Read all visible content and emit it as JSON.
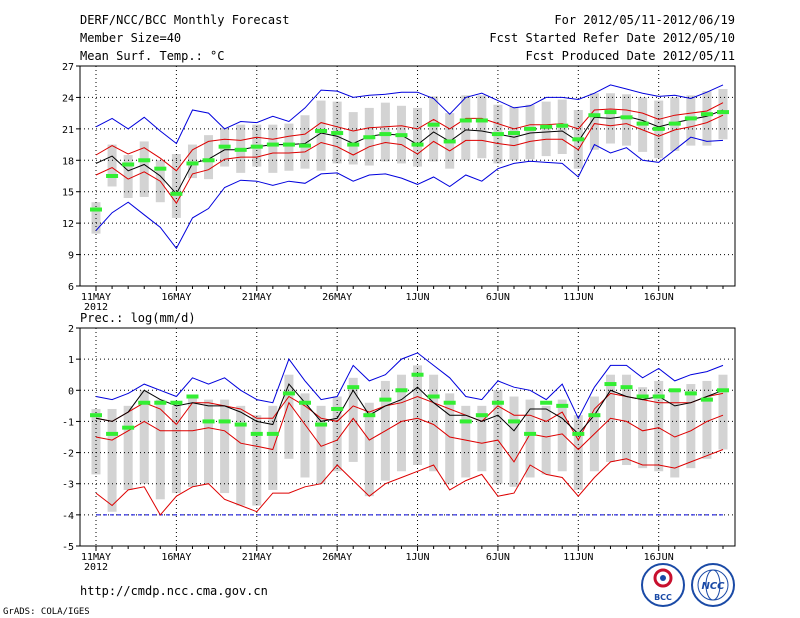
{
  "header": {
    "title": "DERF/NCC/BCC Monthly Forecast",
    "member_size": "Member Size=40",
    "variable": "Mean Surf. Temp.: °C",
    "period": "For 2012/05/11-2012/06/19",
    "started": "Fcst Started Refer Date 2012/05/10",
    "produced": "Fcst Produced Date 2012/05/11"
  },
  "footer": {
    "url": "http://cmdp.ncc.cma.gov.cn",
    "grads": "GrADS: COLA/IGES",
    "logo1_text": "BCC",
    "logo2_text": "NCC"
  },
  "colors": {
    "envelope": "#0000dd",
    "quartile": "#dd0000",
    "median": "#000000",
    "observed": "#33ee33",
    "spread": "#d3d3d3"
  },
  "chart_data": [
    {
      "type": "line",
      "title": "Mean Surf. Temp.: °C",
      "ylim": [
        6,
        27
      ],
      "yticks": [
        6,
        9,
        12,
        15,
        18,
        21,
        24,
        27
      ],
      "x_tick_labels": [
        "11MAY",
        "16MAY",
        "21MAY",
        "26MAY",
        "1JUN",
        "6JUN",
        "11JUN",
        "16JUN"
      ],
      "x_tick_days": [
        1,
        6,
        11,
        16,
        21,
        26,
        31,
        36
      ],
      "year_label": "2012",
      "days": 40,
      "series": [
        {
          "name": "max",
          "color": "blue",
          "values": [
            21.2,
            22.0,
            21.0,
            22.1,
            20.8,
            19.6,
            22.8,
            22.5,
            21.0,
            21.7,
            21.6,
            22.2,
            21.7,
            23.0,
            24.7,
            24.6,
            24.0,
            24.2,
            24.3,
            24.5,
            24.5,
            23.9,
            22.4,
            24.0,
            24.4,
            23.7,
            23.0,
            23.2,
            24.0,
            24.0,
            23.8,
            24.4,
            25.2,
            24.8,
            24.4,
            24.1,
            24.2,
            23.9,
            24.5,
            25.2
          ]
        },
        {
          "name": "upper-quartile",
          "color": "red",
          "values": [
            18.5,
            19.4,
            18.6,
            19.2,
            18.2,
            17.0,
            19.0,
            19.8,
            20.0,
            19.9,
            20.2,
            20.0,
            20.3,
            20.5,
            21.6,
            21.2,
            20.8,
            21.1,
            21.2,
            21.3,
            21.0,
            21.9,
            21.0,
            22.0,
            22.0,
            21.5,
            21.0,
            21.4,
            21.4,
            21.5,
            21.0,
            22.8,
            22.9,
            22.8,
            22.5,
            21.9,
            22.3,
            22.5,
            22.7,
            23.5
          ]
        },
        {
          "name": "median",
          "color": "black",
          "values": [
            17.7,
            18.4,
            17.0,
            17.6,
            16.5,
            14.8,
            17.7,
            18.1,
            19.0,
            19.0,
            19.3,
            19.5,
            19.5,
            19.6,
            20.6,
            20.3,
            19.6,
            20.3,
            20.5,
            20.4,
            19.5,
            20.7,
            19.8,
            20.9,
            20.8,
            20.5,
            20.2,
            20.6,
            20.7,
            20.8,
            19.8,
            22.1,
            22.0,
            22.2,
            21.8,
            21.2,
            21.6,
            21.9,
            22.2,
            22.8
          ]
        },
        {
          "name": "lower-quartile",
          "color": "red",
          "values": [
            16.6,
            17.3,
            16.2,
            16.9,
            16.0,
            13.9,
            16.7,
            17.1,
            18.1,
            18.3,
            18.3,
            18.7,
            18.7,
            18.8,
            19.7,
            19.3,
            18.5,
            19.3,
            19.7,
            19.5,
            18.6,
            19.8,
            18.9,
            19.9,
            19.9,
            19.6,
            19.4,
            19.8,
            20.0,
            20.0,
            19.0,
            21.5,
            21.3,
            21.5,
            20.9,
            20.3,
            20.9,
            21.2,
            21.6,
            22.3
          ]
        },
        {
          "name": "min",
          "color": "blue",
          "values": [
            11.3,
            13.0,
            14.0,
            12.8,
            11.6,
            9.6,
            12.5,
            13.4,
            15.4,
            16.1,
            16.0,
            15.6,
            16.0,
            15.8,
            16.7,
            16.8,
            16.0,
            16.6,
            16.7,
            16.3,
            15.7,
            16.4,
            15.5,
            16.6,
            16.0,
            17.2,
            17.7,
            17.9,
            17.8,
            17.7,
            16.4,
            19.5,
            18.7,
            19.2,
            18.0,
            17.8,
            19.0,
            20.2,
            19.8,
            19.9
          ]
        },
        {
          "name": "observed",
          "color": "green",
          "values": [
            13.3,
            16.5,
            17.6,
            18.0,
            17.2,
            14.8,
            17.7,
            18.0,
            19.3,
            19.0,
            19.3,
            19.5,
            19.5,
            19.4,
            20.8,
            20.6,
            19.5,
            20.2,
            20.5,
            20.4,
            19.5,
            21.4,
            19.8,
            21.8,
            21.8,
            20.5,
            20.6,
            21.0,
            21.2,
            21.3,
            20.0,
            22.3,
            22.6,
            22.1,
            21.5,
            21.0,
            21.5,
            22.0,
            22.4,
            22.6
          ]
        }
      ],
      "spread_bars": {
        "low": [
          11.0,
          15.5,
          14.4,
          14.5,
          14.0,
          12.5,
          16.3,
          16.2,
          17.4,
          16.8,
          17.4,
          16.8,
          17.0,
          17.2,
          17.0,
          17.7,
          17.6,
          17.5,
          17.9,
          17.7,
          17.4,
          17.9,
          17.2,
          18.0,
          18.2,
          17.7,
          18.0,
          18.1,
          18.4,
          18.6,
          17.2,
          19.0,
          19.6,
          19.4,
          18.8,
          18.2,
          18.9,
          19.4,
          19.4,
          20.0
        ],
        "high": [
          14.0,
          19.5,
          18.5,
          19.8,
          18.0,
          18.6,
          19.5,
          20.4,
          21.1,
          21.4,
          21.4,
          21.4,
          21.5,
          22.3,
          23.7,
          23.6,
          22.6,
          23.0,
          23.5,
          23.2,
          23.0,
          24.1,
          22.5,
          24.2,
          24.2,
          23.3,
          23.1,
          23.3,
          23.6,
          23.8,
          22.8,
          24.4,
          24.4,
          24.3,
          24.0,
          23.7,
          24.0,
          24.2,
          24.6,
          24.8
        ]
      }
    },
    {
      "type": "line",
      "title": "Prec.: log(mm/d)",
      "ylim": [
        -5,
        2
      ],
      "yticks": [
        -5,
        -4,
        -3,
        -2,
        -1,
        0,
        1,
        2
      ],
      "x_tick_labels": [
        "11MAY",
        "16MAY",
        "21MAY",
        "26MAY",
        "1JUN",
        "6JUN",
        "11JUN",
        "16JUN"
      ],
      "x_tick_days": [
        1,
        6,
        11,
        16,
        21,
        26,
        31,
        36
      ],
      "year_label": "2012",
      "days": 40,
      "series": [
        {
          "name": "max",
          "color": "blue",
          "values": [
            -0.2,
            -0.3,
            -0.1,
            0.2,
            0.0,
            -0.2,
            0.4,
            0.2,
            0.4,
            0.0,
            -0.3,
            -0.4,
            1.0,
            0.3,
            -0.3,
            -0.2,
            0.8,
            0.3,
            0.5,
            1.0,
            1.2,
            0.8,
            0.4,
            -0.2,
            -0.3,
            0.3,
            0.1,
            0.0,
            -0.3,
            0.2,
            -0.9,
            0.1,
            0.8,
            0.8,
            0.4,
            0.7,
            0.3,
            0.5,
            0.6,
            0.8
          ]
        },
        {
          "name": "upper-quartile",
          "color": "red",
          "values": [
            -0.9,
            -1.0,
            -0.7,
            -0.4,
            -0.6,
            -1.1,
            -0.4,
            -0.4,
            -0.5,
            -0.6,
            -0.9,
            -0.9,
            -0.2,
            -0.5,
            -0.9,
            -1.0,
            -0.5,
            -0.7,
            -0.5,
            -0.4,
            -0.2,
            -0.4,
            -0.6,
            -0.8,
            -1.0,
            -0.5,
            -0.8,
            -0.8,
            -1.0,
            -0.7,
            -1.6,
            -0.6,
            -0.1,
            -0.2,
            -0.3,
            -0.4,
            -0.4,
            -0.4,
            -0.2,
            -0.1
          ]
        },
        {
          "name": "median",
          "color": "black",
          "values": [
            -0.9,
            -1.0,
            -0.7,
            0.0,
            -0.3,
            -0.5,
            -0.4,
            -0.5,
            -0.5,
            -0.7,
            -1.0,
            -1.1,
            0.2,
            -0.4,
            -1.0,
            -0.9,
            0.0,
            -0.8,
            -0.5,
            -0.3,
            0.1,
            -0.4,
            -0.8,
            -0.8,
            -1.0,
            -0.8,
            -1.3,
            -0.6,
            -0.6,
            -0.9,
            -1.4,
            -0.8,
            0.0,
            -0.2,
            -0.3,
            -0.2,
            -0.5,
            -0.4,
            -0.2,
            0.0
          ]
        },
        {
          "name": "lower-quartile",
          "color": "red",
          "values": [
            -1.5,
            -1.6,
            -1.3,
            -1.0,
            -1.3,
            -1.3,
            -1.3,
            -1.2,
            -1.3,
            -1.7,
            -1.8,
            -1.9,
            -0.4,
            -1.1,
            -1.8,
            -1.6,
            -0.9,
            -1.6,
            -1.3,
            -1.0,
            -0.9,
            -1.1,
            -1.5,
            -1.6,
            -1.7,
            -1.6,
            -2.3,
            -1.4,
            -1.5,
            -1.4,
            -1.9,
            -1.4,
            -0.9,
            -1.0,
            -1.3,
            -1.2,
            -1.5,
            -1.3,
            -1.0,
            -0.8
          ]
        },
        {
          "name": "min",
          "color": "red",
          "values": [
            -3.3,
            -3.7,
            -3.2,
            -3.1,
            -4.0,
            -3.4,
            -3.1,
            -3.0,
            -3.5,
            -3.7,
            -3.9,
            -3.3,
            -3.3,
            -3.1,
            -3.0,
            -2.4,
            -2.9,
            -3.4,
            -3.0,
            -2.8,
            -2.6,
            -2.4,
            -3.2,
            -2.9,
            -2.7,
            -3.4,
            -3.3,
            -2.4,
            -2.7,
            -2.8,
            -3.4,
            -2.8,
            -2.3,
            -2.2,
            -2.4,
            -2.4,
            -2.5,
            -2.3,
            -2.1,
            -1.9
          ]
        },
        {
          "name": "observed",
          "color": "green",
          "values": [
            -0.8,
            -1.4,
            -1.2,
            -0.4,
            -0.4,
            -0.4,
            -0.2,
            -1.0,
            -1.0,
            -1.1,
            -1.4,
            -1.4,
            -0.1,
            -0.4,
            -1.1,
            -0.6,
            0.1,
            -0.8,
            -0.3,
            0.0,
            0.5,
            -0.2,
            -0.4,
            -1.0,
            -0.8,
            -0.4,
            -1.0,
            -1.4,
            -0.4,
            -0.5,
            -1.4,
            -0.8,
            0.2,
            0.1,
            -0.2,
            -0.2,
            0.0,
            -0.1,
            -0.3,
            0.0
          ]
        }
      ],
      "floor_line": -4,
      "spread_bars": {
        "low": [
          -2.7,
          -3.9,
          -3.2,
          -3.0,
          -3.5,
          -3.3,
          -3.1,
          -3.0,
          -3.3,
          -3.7,
          -3.7,
          -3.2,
          -2.2,
          -2.8,
          -3.0,
          -2.6,
          -2.3,
          -3.4,
          -2.9,
          -2.6,
          -2.4,
          -2.6,
          -3.0,
          -2.8,
          -2.6,
          -3.0,
          -3.1,
          -2.8,
          -2.7,
          -2.6,
          -3.2,
          -2.6,
          -2.3,
          -2.4,
          -2.5,
          -2.6,
          -2.8,
          -2.5,
          -2.2,
          -1.9
        ],
        "high": [
          -0.6,
          -0.6,
          -0.5,
          0.0,
          -0.3,
          -0.5,
          -0.2,
          -0.3,
          -0.3,
          -0.5,
          -0.8,
          -0.5,
          0.5,
          -0.1,
          -0.5,
          -0.2,
          0.4,
          -0.4,
          0.3,
          0.5,
          0.8,
          0.5,
          -0.1,
          -0.5,
          -0.5,
          0.0,
          -0.2,
          -0.3,
          -0.5,
          -0.3,
          -0.8,
          -0.2,
          0.5,
          0.5,
          0.1,
          0.3,
          0.0,
          0.2,
          0.3,
          0.5
        ]
      }
    }
  ]
}
